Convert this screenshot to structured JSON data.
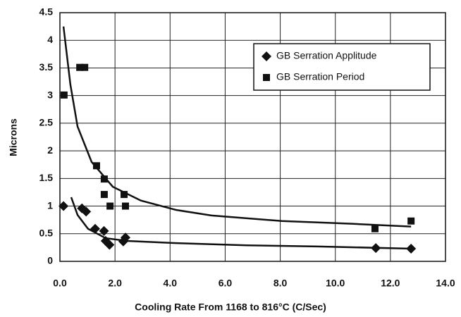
{
  "chart_data": {
    "type": "scatter",
    "x_label": "Cooling Rate From 1168 to 816°C (C/Sec)",
    "y_label": "Microns",
    "xlim": [
      0,
      14
    ],
    "ylim": [
      0,
      4.5
    ],
    "xticks": [
      {
        "value": 0,
        "label": "0.0"
      },
      {
        "value": 2,
        "label": "2.0"
      },
      {
        "value": 4,
        "label": "4.0"
      },
      {
        "value": 6,
        "label": "6.0"
      },
      {
        "value": 8,
        "label": "8.0"
      },
      {
        "value": 10,
        "label": "10.0"
      },
      {
        "value": 12,
        "label": "12.0"
      },
      {
        "value": 14,
        "label": "14.0"
      }
    ],
    "yticks": [
      0,
      0.5,
      1,
      1.5,
      2,
      2.5,
      3,
      3.5,
      4,
      4.5
    ],
    "grid": true,
    "legend": "upper right",
    "series": [
      {
        "name": "GB Serration Applitude",
        "color": "#111111",
        "marker": "diamond",
        "x": [
          0.13,
          0.8,
          0.95,
          1.28,
          1.6,
          1.66,
          1.8,
          2.3,
          2.38,
          11.47,
          12.75
        ],
        "values": [
          1.0,
          0.96,
          0.9,
          0.59,
          0.55,
          0.37,
          0.3,
          0.36,
          0.43,
          0.24,
          0.23
        ]
      },
      {
        "name": "GB Serration Period",
        "color": "#111111",
        "marker": "square",
        "x": [
          0.15,
          0.72,
          0.9,
          1.33,
          1.61,
          1.61,
          1.82,
          2.33,
          2.38,
          11.44,
          12.75
        ],
        "values": [
          3.01,
          3.51,
          3.51,
          1.73,
          1.49,
          1.21,
          1.0,
          1.21,
          1.0,
          0.59,
          0.73
        ]
      }
    ],
    "trendlines": [
      {
        "color": "#111111",
        "x": [
          0.41,
          0.64,
          1.02,
          1.66,
          2.43,
          4.22,
          6.78,
          9.34,
          12.75
        ],
        "values": [
          1.16,
          0.84,
          0.59,
          0.42,
          0.37,
          0.33,
          0.29,
          0.27,
          0.23
        ]
      },
      {
        "color": "#111111",
        "x": [
          0.13,
          0.38,
          0.64,
          1.15,
          1.92,
          2.94,
          4.22,
          5.5,
          8.06,
          10.6,
          12.75
        ],
        "values": [
          4.25,
          3.2,
          2.44,
          1.8,
          1.35,
          1.1,
          0.93,
          0.83,
          0.73,
          0.68,
          0.63
        ]
      }
    ]
  }
}
